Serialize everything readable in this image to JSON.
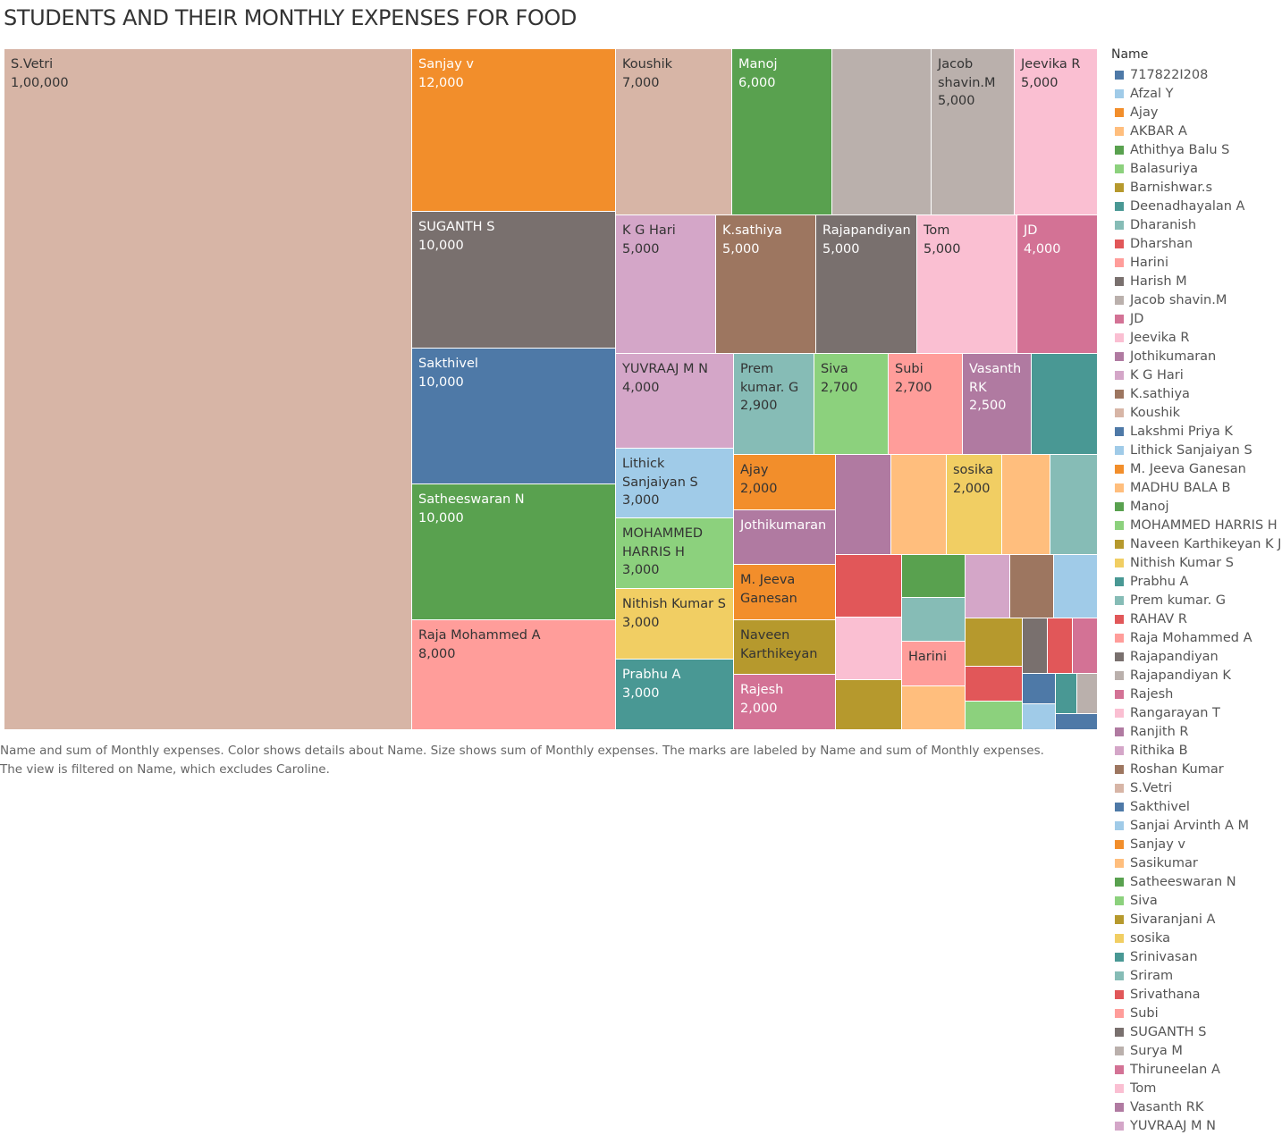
{
  "title": "STUDENTS AND THEIR MONTHLY EXPENSES FOR FOOD",
  "caption": {
    "line1": "Name and sum of Monthly expenses.  Color shows details about Name.  Size shows sum of Monthly expenses.  The marks are labeled by Name and sum of Monthly expenses.",
    "line2": "The view is filtered on Name, which excludes Caroline."
  },
  "legend_title": "Name",
  "legend": [
    {
      "name": "717822I208",
      "color": "#4e79a7"
    },
    {
      "name": "Afzal Y",
      "color": "#a0cbe8"
    },
    {
      "name": "Ajay",
      "color": "#f28e2b"
    },
    {
      "name": "AKBAR A",
      "color": "#ffbe7d"
    },
    {
      "name": "Athithya Balu S",
      "color": "#59a14f"
    },
    {
      "name": "Balasuriya",
      "color": "#8cd17d"
    },
    {
      "name": "Barnishwar.s",
      "color": "#b6992d"
    },
    {
      "name": "Deenadhayalan A",
      "color": "#499894"
    },
    {
      "name": "Dharanish",
      "color": "#86bcb6"
    },
    {
      "name": "Dharshan",
      "color": "#e15759"
    },
    {
      "name": "Harini",
      "color": "#ff9d9a"
    },
    {
      "name": "Harish M",
      "color": "#79706e"
    },
    {
      "name": "Jacob shavin.M",
      "color": "#bab0ac"
    },
    {
      "name": "JD",
      "color": "#d37295"
    },
    {
      "name": "Jeevika R",
      "color": "#fabfd2"
    },
    {
      "name": "Jothikumaran",
      "color": "#b07aa1"
    },
    {
      "name": "K G Hari",
      "color": "#d4a6c8"
    },
    {
      "name": "K.sathiya",
      "color": "#9d7660"
    },
    {
      "name": "Koushik",
      "color": "#d7b5a6"
    },
    {
      "name": "Lakshmi Priya K",
      "color": "#4e79a7"
    },
    {
      "name": "Lithick Sanjaiyan S",
      "color": "#a0cbe8"
    },
    {
      "name": "M. Jeeva Ganesan",
      "color": "#f28e2b"
    },
    {
      "name": "MADHU BALA B",
      "color": "#ffbe7d"
    },
    {
      "name": "Manoj",
      "color": "#59a14f"
    },
    {
      "name": "MOHAMMED HARRIS H",
      "color": "#8cd17d"
    },
    {
      "name": "Naveen Karthikeyan K J",
      "color": "#b6992d"
    },
    {
      "name": "Nithish Kumar S",
      "color": "#f1ce63"
    },
    {
      "name": "Prabhu A",
      "color": "#499894"
    },
    {
      "name": "Prem kumar. G",
      "color": "#86bcb6"
    },
    {
      "name": "RAHAV R",
      "color": "#e15759"
    },
    {
      "name": "Raja Mohammed A",
      "color": "#ff9d9a"
    },
    {
      "name": "Rajapandiyan",
      "color": "#79706e"
    },
    {
      "name": "Rajapandiyan K",
      "color": "#bab0ac"
    },
    {
      "name": "Rajesh",
      "color": "#d37295"
    },
    {
      "name": "Rangarayan T",
      "color": "#fabfd2"
    },
    {
      "name": "Ranjith R",
      "color": "#b07aa1"
    },
    {
      "name": "Rithika B",
      "color": "#d4a6c8"
    },
    {
      "name": "Roshan Kumar",
      "color": "#9d7660"
    },
    {
      "name": "S.Vetri",
      "color": "#d7b5a6"
    },
    {
      "name": "Sakthivel",
      "color": "#4e79a7"
    },
    {
      "name": "Sanjai Arvinth A M",
      "color": "#a0cbe8"
    },
    {
      "name": "Sanjay v",
      "color": "#f28e2b"
    },
    {
      "name": "Sasikumar",
      "color": "#ffbe7d"
    },
    {
      "name": "Satheeswaran N",
      "color": "#59a14f"
    },
    {
      "name": "Siva",
      "color": "#8cd17d"
    },
    {
      "name": "Sivaranjani A",
      "color": "#b6992d"
    },
    {
      "name": "sosika",
      "color": "#f1ce63"
    },
    {
      "name": "Srinivasan",
      "color": "#499894"
    },
    {
      "name": "Sriram",
      "color": "#86bcb6"
    },
    {
      "name": "Srivathana",
      "color": "#e15759"
    },
    {
      "name": "Subi",
      "color": "#ff9d9a"
    },
    {
      "name": "SUGANTH S",
      "color": "#79706e"
    },
    {
      "name": "Surya M",
      "color": "#bab0ac"
    },
    {
      "name": "Thiruneelan A",
      "color": "#d37295"
    },
    {
      "name": "Tom",
      "color": "#fabfd2"
    },
    {
      "name": "Vasanth RK",
      "color": "#b07aa1"
    },
    {
      "name": "YUVRAAJ M N",
      "color": "#d4a6c8"
    }
  ],
  "chart_data": {
    "type": "treemap",
    "title": "STUDENTS AND THEIR MONTHLY EXPENSES FOR FOOD",
    "measure": "Monthly expenses",
    "marks": [
      {
        "name": "S.Vetri",
        "label": "S.Vetri",
        "value": 100000,
        "value_label": "1,00,000",
        "color": "#d7b5a6",
        "text": "#333333"
      },
      {
        "name": "Sanjay v",
        "label": "Sanjay v",
        "value": 12000,
        "value_label": "12,000",
        "color": "#f28e2b",
        "text": "#ffffff"
      },
      {
        "name": "SUGANTH S",
        "label": "SUGANTH S",
        "value": 10000,
        "value_label": "10,000",
        "color": "#79706e",
        "text": "#ffffff"
      },
      {
        "name": "Sakthivel",
        "label": "Sakthivel",
        "value": 10000,
        "value_label": "10,000",
        "color": "#4e79a7",
        "text": "#ffffff"
      },
      {
        "name": "Satheeswaran N",
        "label": "Satheeswaran N",
        "value": 10000,
        "value_label": "10,000",
        "color": "#59a14f",
        "text": "#ffffff"
      },
      {
        "name": "Raja Mohammed A",
        "label": "Raja Mohammed A",
        "value": 8000,
        "value_label": "8,000",
        "color": "#ff9d9a",
        "text": "#333333"
      },
      {
        "name": "Koushik",
        "label": "Koushik",
        "value": 7000,
        "value_label": "7,000",
        "color": "#d7b5a6",
        "text": "#333333"
      },
      {
        "name": "Manoj",
        "label": "Manoj",
        "value": 6000,
        "value_label": "6,000",
        "color": "#59a14f",
        "text": "#ffffff"
      },
      {
        "name": "Rajapandiyan K",
        "label": "",
        "value": 6000,
        "value_label": "",
        "color": "#bab0ac",
        "text": "#333333"
      },
      {
        "name": "Jacob shavin.M",
        "label": "Jacob shavin.M",
        "value": 5000,
        "value_label": "5,000",
        "color": "#bab0ac",
        "text": "#333333"
      },
      {
        "name": "Jeevika R",
        "label": "Jeevika R",
        "value": 5000,
        "value_label": "5,000",
        "color": "#fabfd2",
        "text": "#333333"
      },
      {
        "name": "K G Hari",
        "label": "K G Hari",
        "value": 5000,
        "value_label": "5,000",
        "color": "#d4a6c8",
        "text": "#333333"
      },
      {
        "name": "K.sathiya",
        "label": "K.sathiya",
        "value": 5000,
        "value_label": "5,000",
        "color": "#9d7660",
        "text": "#ffffff"
      },
      {
        "name": "Rajapandiyan",
        "label": "Rajapandiyan",
        "value": 5000,
        "value_label": "5,000",
        "color": "#79706e",
        "text": "#ffffff"
      },
      {
        "name": "Tom",
        "label": "Tom",
        "value": 5000,
        "value_label": "5,000",
        "color": "#fabfd2",
        "text": "#333333"
      },
      {
        "name": "JD",
        "label": "JD",
        "value": 4000,
        "value_label": "4,000",
        "color": "#d37295",
        "text": "#ffffff"
      },
      {
        "name": "YUVRAAJ M N",
        "label": "YUVRAAJ M N",
        "value": 4000,
        "value_label": "4,000",
        "color": "#d4a6c8",
        "text": "#333333"
      },
      {
        "name": "Prem kumar. G",
        "label": "Prem kumar. G",
        "value": 2900,
        "value_label": "2,900",
        "color": "#86bcb6",
        "text": "#333333"
      },
      {
        "name": "Siva",
        "label": "Siva",
        "value": 2700,
        "value_label": "2,700",
        "color": "#8cd17d",
        "text": "#333333"
      },
      {
        "name": "Subi",
        "label": "Subi",
        "value": 2700,
        "value_label": "2,700",
        "color": "#ff9d9a",
        "text": "#333333"
      },
      {
        "name": "Vasanth RK",
        "label": "Vasanth RK",
        "value": 2500,
        "value_label": "2,500",
        "color": "#b07aa1",
        "text": "#ffffff"
      },
      {
        "name": "Srinivasan",
        "label": "",
        "value": 2500,
        "value_label": "",
        "color": "#499894",
        "text": "#ffffff"
      },
      {
        "name": "Lithick Sanjaiyan S",
        "label": "Lithick Sanjaiyan S",
        "value": 3000,
        "value_label": "3,000",
        "color": "#a0cbe8",
        "text": "#333333"
      },
      {
        "name": "MOHAMMED HARRIS H",
        "label": "MOHAMMED HARRIS H",
        "value": 3000,
        "value_label": "3,000",
        "color": "#8cd17d",
        "text": "#333333"
      },
      {
        "name": "Nithish Kumar S",
        "label": "Nithish Kumar S",
        "value": 3000,
        "value_label": "3,000",
        "color": "#f1ce63",
        "text": "#333333"
      },
      {
        "name": "Prabhu A",
        "label": "Prabhu A",
        "value": 3000,
        "value_label": "3,000",
        "color": "#499894",
        "text": "#ffffff"
      },
      {
        "name": "Ajay",
        "label": "Ajay",
        "value": 2000,
        "value_label": "2,000",
        "color": "#f28e2b",
        "text": "#333333"
      },
      {
        "name": "Jothikumaran",
        "label": "Jothikumaran",
        "value": 2000,
        "value_label": "",
        "color": "#b07aa1",
        "text": "#ffffff"
      },
      {
        "name": "M. Jeeva Ganesan",
        "label": "M. Jeeva Ganesan",
        "value": 2000,
        "value_label": "",
        "color": "#f28e2b",
        "text": "#333333"
      },
      {
        "name": "Naveen Karthikeyan K J",
        "label": "Naveen Karthikeyan",
        "value": 2000,
        "value_label": "",
        "color": "#b6992d",
        "text": "#333333"
      },
      {
        "name": "Rajesh",
        "label": "Rajesh",
        "value": 2000,
        "value_label": "2,000",
        "color": "#d37295",
        "text": "#ffffff"
      },
      {
        "name": "Ranjith R",
        "label": "",
        "value": 2000,
        "value_label": "",
        "color": "#b07aa1",
        "text": "#ffffff"
      },
      {
        "name": "AKBAR A",
        "label": "",
        "value": 2000,
        "value_label": "",
        "color": "#ffbe7d",
        "text": "#333333"
      },
      {
        "name": "sosika",
        "label": "sosika",
        "value": 2000,
        "value_label": "2,000",
        "color": "#f1ce63",
        "text": "#333333"
      },
      {
        "name": "MADHU BALA B",
        "label": "",
        "value": 2000,
        "value_label": "",
        "color": "#ffbe7d",
        "text": "#333333"
      },
      {
        "name": "Dharanish",
        "label": "",
        "value": 2000,
        "value_label": "",
        "color": "#86bcb6",
        "text": "#333333"
      },
      {
        "name": "Dharshan",
        "label": "",
        "value": 1600,
        "value_label": "",
        "color": "#e15759",
        "text": "#ffffff"
      },
      {
        "name": "Rangarayan T",
        "label": "",
        "value": 1600,
        "value_label": "",
        "color": "#fabfd2",
        "text": "#333333"
      },
      {
        "name": "Sivaranjani A",
        "label": "",
        "value": 1000,
        "value_label": "",
        "color": "#b6992d",
        "text": "#333333"
      },
      {
        "name": "Athithya Balu S",
        "label": "",
        "value": 1000,
        "value_label": "",
        "color": "#59a14f",
        "text": "#ffffff"
      },
      {
        "name": "Sriram",
        "label": "",
        "value": 1000,
        "value_label": "",
        "color": "#86bcb6",
        "text": "#333333"
      },
      {
        "name": "Harini",
        "label": "Harini",
        "value": 1000,
        "value_label": "",
        "color": "#ff9d9a",
        "text": "#333333"
      },
      {
        "name": "Sasikumar",
        "label": "",
        "value": 1000,
        "value_label": "",
        "color": "#ffbe7d",
        "text": "#333333"
      },
      {
        "name": "Rithika B",
        "label": "",
        "value": 1000,
        "value_label": "",
        "color": "#d4a6c8",
        "text": "#333333"
      },
      {
        "name": "Roshan Kumar",
        "label": "",
        "value": 1000,
        "value_label": "",
        "color": "#9d7660",
        "text": "#ffffff"
      },
      {
        "name": "Sanjai Arvinth A M",
        "label": "",
        "value": 1000,
        "value_label": "",
        "color": "#a0cbe8",
        "text": "#333333"
      },
      {
        "name": "Barnishwar.s",
        "label": "",
        "value": 700,
        "value_label": "",
        "color": "#b6992d",
        "text": "#333333"
      },
      {
        "name": "RAHAV R",
        "label": "",
        "value": 700,
        "value_label": "",
        "color": "#e15759",
        "text": "#ffffff"
      },
      {
        "name": "Balasuriya",
        "label": "",
        "value": 600,
        "value_label": "",
        "color": "#8cd17d",
        "text": "#333333"
      },
      {
        "name": "Harish M",
        "label": "",
        "value": 500,
        "value_label": "",
        "color": "#79706e",
        "text": "#ffffff"
      },
      {
        "name": "Srivathana",
        "label": "",
        "value": 500,
        "value_label": "",
        "color": "#e15759",
        "text": "#ffffff"
      },
      {
        "name": "Thiruneelan A",
        "label": "",
        "value": 500,
        "value_label": "",
        "color": "#d37295",
        "text": "#ffffff"
      },
      {
        "name": "Lakshmi Priya K",
        "label": "",
        "value": 400,
        "value_label": "",
        "color": "#4e79a7",
        "text": "#ffffff"
      },
      {
        "name": "Deenadhayalan A",
        "label": "",
        "value": 400,
        "value_label": "",
        "color": "#499894",
        "text": "#ffffff"
      },
      {
        "name": "Surya M",
        "label": "",
        "value": 400,
        "value_label": "",
        "color": "#bab0ac",
        "text": "#333333"
      },
      {
        "name": "Afzal Y",
        "label": "",
        "value": 300,
        "value_label": "",
        "color": "#a0cbe8",
        "text": "#333333"
      },
      {
        "name": "717822I208",
        "label": "",
        "value": 200,
        "value_label": "",
        "color": "#4e79a7",
        "text": "#ffffff"
      }
    ]
  }
}
